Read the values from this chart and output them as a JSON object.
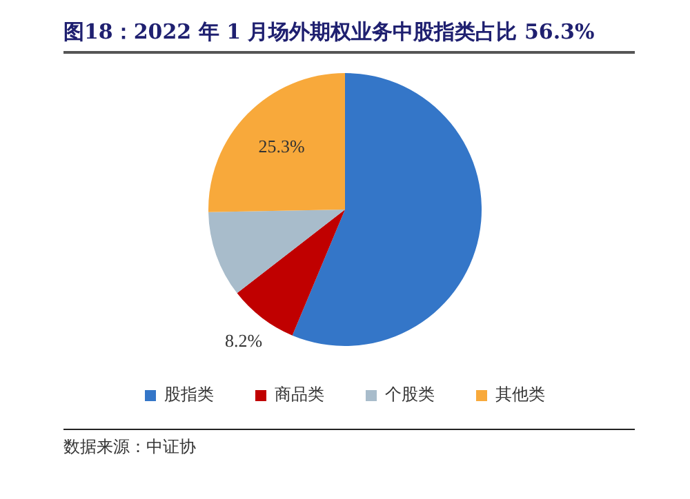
{
  "chart_data": {
    "type": "pie",
    "title": "图18：2022 年 1 月场外期权业务中股指类占比 56.3%",
    "categories": [
      "股指类",
      "商品类",
      "个股类",
      "其他类"
    ],
    "values": [
      56.3,
      8.2,
      10.2,
      25.3
    ],
    "colors": [
      "#3476c8",
      "#c00000",
      "#a8bccb",
      "#f8a93b"
    ],
    "value_labels": [
      null,
      "8.2%",
      null,
      "25.3%"
    ],
    "legend": "bottom",
    "annotations": [
      "数据来源：中证协"
    ]
  }
}
